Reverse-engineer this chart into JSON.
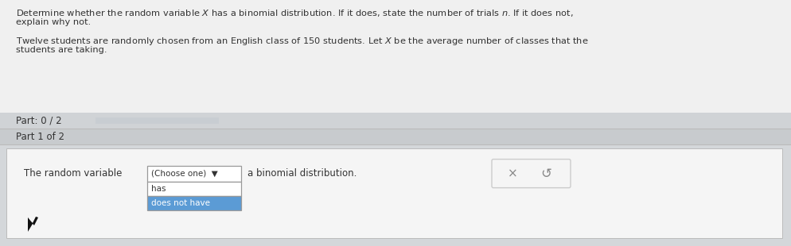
{
  "bg_color": "#e8e8e8",
  "white": "#ffffff",
  "header_text_1": "Determine whether the random variable $X$ has a binomial distribution. If it does, state the number of trials $n$. If it does not,",
  "header_text_2": "explain why not.",
  "body_text_1": "Twelve students are randomly chosen from an English class of 150 students. Let $X$ be the average number of classes that the",
  "body_text_2": "students are taking.",
  "part_label": "Part: 0 / 2",
  "part1_label": "Part 1 of 2",
  "question_text": "The random variable",
  "dropdown_label": "(Choose one)  ▼",
  "after_dropdown": "a binomial distribution.",
  "option1": "has",
  "option2": "does not have",
  "option2_bg": "#5b9bd5",
  "dropdown_border": "#999999",
  "progress_bar_bg": "#c8cdd2",
  "part_bar_bg": "#d0d3d6",
  "part1_bar_bg": "#c8cbce",
  "content_bg": "#d4d7da",
  "inner_white_bg": "#f5f5f5",
  "text_color": "#333333",
  "light_text": "#555555",
  "x_btn_color": "#888888",
  "x_btn_border": "#cccccc",
  "divider_color": "#bbbbbb",
  "top_white_bg": "#f0f0f0"
}
